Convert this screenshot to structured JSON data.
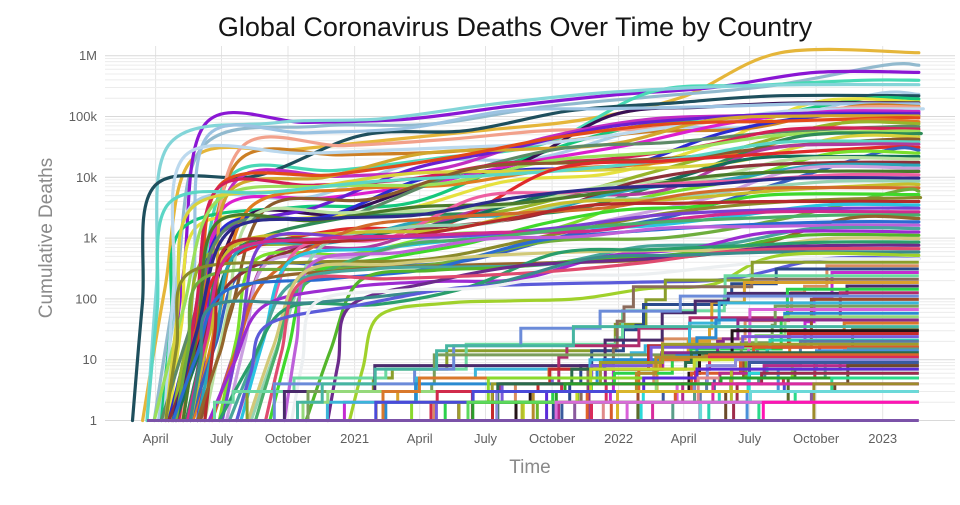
{
  "chart_data": {
    "type": "line",
    "title": "Global Coronavirus Deaths Over Time by Country",
    "xlabel": "Time",
    "ylabel": "Cumulative Deaths",
    "legend": "none",
    "grid": "on",
    "y_scale": "log",
    "y_ticks": [
      "1",
      "10",
      "100",
      "1k",
      "10k",
      "100k",
      "1M"
    ],
    "y_tick_values": [
      1,
      10,
      100,
      1000,
      10000,
      100000,
      1000000
    ],
    "y_range": [
      1,
      1000000
    ],
    "x_ticks": [
      "April",
      "July",
      "October",
      "2021",
      "April",
      "July",
      "October",
      "2022",
      "April",
      "July",
      "October",
      "2023"
    ],
    "x_tick_days": [
      70,
      161,
      253,
      345,
      435,
      526,
      618,
      710,
      800,
      891,
      983,
      1075
    ],
    "x_range_days": [
      0,
      1175
    ],
    "x_data_end_day": 1125,
    "series_note": "One unlabeled line per country; cumulative COVID-19 deaths. Each entry: [color, onset_day, final_cumulative_deaths, kind s=smooth-curve t=step-curve]",
    "series": [
      [
        "#e5b63a",
        52,
        1120000,
        "s"
      ],
      [
        "#92bace",
        68,
        699000,
        "s"
      ],
      [
        "#8a16d4",
        84,
        531000,
        "s"
      ],
      [
        "#49d9b5",
        92,
        394000,
        "s"
      ],
      [
        "#83d5d8",
        58,
        334000,
        "s"
      ],
      [
        "#a9cde6",
        74,
        231000,
        "s"
      ],
      [
        "#1e4f5d",
        38,
        219000,
        "s"
      ],
      [
        "#15c87c",
        78,
        194000,
        "s"
      ],
      [
        "#e6e13e",
        88,
        174000,
        "s"
      ],
      [
        "#381055",
        98,
        167000,
        "s"
      ],
      [
        "#9cc3e2",
        108,
        161000,
        "s"
      ],
      [
        "#cc7f24",
        94,
        146000,
        "s"
      ],
      [
        "#f2a18b",
        104,
        142000,
        "s"
      ],
      [
        "#bcd9ee",
        82,
        133000,
        "s"
      ],
      [
        "#dc1ecf",
        118,
        121000,
        "s"
      ],
      [
        "#c22dc2",
        98,
        118000,
        "s"
      ],
      [
        "#6a1fd2",
        128,
        112000,
        "s"
      ],
      [
        "#2b2bd0",
        88,
        104000,
        "s"
      ],
      [
        "#d2a72c",
        138,
        102000,
        "s"
      ],
      [
        "#e34b19",
        108,
        95000,
        "s"
      ],
      [
        "#e07d1f",
        122,
        82000,
        "s"
      ],
      [
        "#97b52b",
        92,
        76000,
        "s"
      ],
      [
        "#5d8a66",
        78,
        68000,
        "s"
      ],
      [
        "#d22057",
        102,
        62000,
        "s"
      ],
      [
        "#9ae05b",
        68,
        57000,
        "s"
      ],
      [
        "#2e8b57",
        112,
        52000,
        "s"
      ],
      [
        "#d9d23c",
        84,
        46000,
        "s"
      ],
      [
        "#8a5a2c",
        132,
        42000,
        "s"
      ],
      [
        "#5bd6c5",
        58,
        38000,
        "s"
      ],
      [
        "#b03b9e",
        148,
        35000,
        "s"
      ],
      [
        "#e02a2a",
        94,
        31000,
        "s"
      ],
      [
        "#3660c0",
        118,
        28000,
        "s"
      ],
      [
        "#7ae02b",
        158,
        25000,
        "s"
      ],
      [
        "#15705a",
        98,
        22000,
        "s"
      ],
      [
        "#b8e0a0",
        138,
        20000,
        "s"
      ],
      [
        "#8c2f3a",
        88,
        17500,
        "s"
      ],
      [
        "#2ba5b8",
        128,
        15800,
        "s"
      ],
      [
        "#caa0e0",
        168,
        14000,
        "s"
      ],
      [
        "#4a7a2b",
        108,
        12500,
        "s"
      ],
      [
        "#ee5fa1",
        182,
        11000,
        "s"
      ],
      [
        "#2c2c8b",
        94,
        9700,
        "s"
      ],
      [
        "#97d3b2",
        202,
        8600,
        "s"
      ],
      [
        "#c7bd2b",
        118,
        7600,
        "s"
      ],
      [
        "#d26b2b",
        148,
        6700,
        "s"
      ],
      [
        "#6fae3d",
        98,
        5900,
        "s"
      ],
      [
        "#3fd92b",
        228,
        5200,
        "s"
      ],
      [
        "#8a8a2b",
        84,
        4600,
        "s"
      ],
      [
        "#b52b2b",
        138,
        4000,
        "s"
      ],
      [
        "#2ac4e0",
        188,
        3500,
        "s"
      ],
      [
        "#7a40d1",
        162,
        3100,
        "s"
      ],
      [
        "#d12b8d",
        114,
        2700,
        "s"
      ],
      [
        "#4ab06b",
        208,
        2400,
        "s"
      ],
      [
        "#94652b",
        128,
        2100,
        "s"
      ],
      [
        "#2a6bd1",
        94,
        1850,
        "s"
      ],
      [
        "#bd60d9",
        248,
        1630,
        "s"
      ],
      [
        "#49a69b",
        172,
        1440,
        "s"
      ],
      [
        "#9c2bd1",
        144,
        1260,
        "s"
      ],
      [
        "#53b52b",
        278,
        1110,
        "s"
      ],
      [
        "#d1c979",
        198,
        980,
        "s"
      ],
      [
        "#2a9e6b",
        158,
        860,
        "s"
      ],
      [
        "#6b2a8b",
        308,
        760,
        "s"
      ],
      [
        "#df4b6f",
        222,
        670,
        "s"
      ],
      [
        "#3a8b8b",
        118,
        590,
        "s"
      ],
      [
        "#a0d12b",
        338,
        520,
        "s"
      ],
      [
        "#5b5bd9",
        182,
        455,
        "s"
      ],
      [
        "#eceff1",
        258,
        450,
        "s"
      ],
      [
        "#8a9e2b",
        148,
        400,
        "t"
      ],
      [
        "#d98d60",
        378,
        350,
        "t"
      ],
      [
        "#2a4a8b",
        202,
        310,
        "t"
      ],
      [
        "#c42bd1",
        288,
        272,
        "t"
      ],
      [
        "#6bd9a1",
        132,
        240,
        "t"
      ],
      [
        "#8b6b5b",
        418,
        211,
        "t"
      ],
      [
        "#d9a12b",
        232,
        186,
        "t"
      ],
      [
        "#4a2a6b",
        162,
        163,
        "t"
      ],
      [
        "#2bd14b",
        458,
        144,
        "t"
      ],
      [
        "#b02b6b",
        298,
        126,
        "t"
      ],
      [
        "#6b8bd9",
        192,
        111,
        "t"
      ],
      [
        "#9e4b2b",
        508,
        98,
        "t"
      ],
      [
        "#3bb5d9",
        242,
        86,
        "t"
      ],
      [
        "#7a9e5b",
        152,
        76,
        "t"
      ],
      [
        "#d960d9",
        558,
        67,
        "t"
      ],
      [
        "#2a8bd1",
        318,
        58,
        "t"
      ],
      [
        "#95d97b",
        212,
        51,
        "t"
      ],
      [
        "#8b2a8b",
        608,
        45,
        "t"
      ],
      [
        "#d9782b",
        262,
        40,
        "t"
      ],
      [
        "#46b5a1",
        172,
        35,
        "t"
      ],
      [
        "#5b6b2b",
        658,
        31,
        "t"
      ],
      [
        "#241419",
        488,
        30,
        "t"
      ],
      [
        "#c42b2b",
        352,
        27,
        "t"
      ],
      [
        "#7a5bd9",
        232,
        24,
        "t"
      ],
      [
        "#2bd1b1",
        708,
        21,
        "t"
      ],
      [
        "#5a7aa6",
        798,
        20,
        "t"
      ],
      [
        "#9e9e2b",
        292,
        18,
        "t"
      ],
      [
        "#d12b4b",
        402,
        16,
        "t"
      ],
      [
        "#d95b2b",
        228,
        16,
        "t"
      ],
      [
        "#5a9e8b",
        348,
        15,
        "t"
      ],
      [
        "#4a90d9",
        758,
        14,
        "t"
      ],
      [
        "#2a6b4b",
        438,
        13,
        "t"
      ],
      [
        "#6bb52b",
        252,
        12,
        "t"
      ],
      [
        "#e0612b",
        558,
        12,
        "t"
      ],
      [
        "#b58b2b",
        452,
        11,
        "t"
      ],
      [
        "#d92b5b",
        408,
        11,
        "t"
      ],
      [
        "#c4d92b",
        298,
        10,
        "t"
      ],
      [
        "#8b8bd9",
        328,
        10,
        "t"
      ],
      [
        "#8ad92b",
        358,
        9,
        "t"
      ],
      [
        "#3a5a9e",
        618,
        9,
        "t"
      ],
      [
        "#b52b8b",
        368,
        8,
        "t"
      ],
      [
        "#6b4a2b",
        518,
        8,
        "t"
      ],
      [
        "#b5bd2b",
        388,
        7,
        "t"
      ],
      [
        "#5b2bd9",
        478,
        7,
        "t"
      ],
      [
        "#2ad9d9",
        428,
        6,
        "t"
      ],
      [
        "#9e2b4b",
        798,
        6,
        "t"
      ],
      [
        "#e08b8b",
        638,
        5,
        "t"
      ],
      [
        "#2a9e2b",
        328,
        5,
        "t"
      ],
      [
        "#2bd98b",
        878,
        5,
        "t"
      ],
      [
        "#4a4ad9",
        248,
        4,
        "t"
      ],
      [
        "#d92b9e",
        478,
        4,
        "t"
      ],
      [
        "#9e8b2b",
        938,
        4,
        "t"
      ],
      [
        "#8b5a9e",
        538,
        3,
        "t"
      ],
      [
        "#d9b52b",
        698,
        3,
        "t"
      ],
      [
        "#6bd9d9",
        758,
        3,
        "t"
      ],
      [
        "#5bd95b",
        298,
        2,
        "t"
      ],
      [
        "#d96bd9",
        548,
        2,
        "t"
      ],
      [
        "#ff14b4",
        858,
        2,
        "t"
      ],
      [
        "#7b52a8",
        58,
        1,
        "t"
      ]
    ],
    "colors": {
      "background": "#ffffff",
      "grid_major": "#d9d9d9",
      "grid_minor": "#ececec",
      "title_text": "#151515",
      "axis_title_text": "#8a8a8a",
      "tick_text": "#5f5f5f"
    }
  }
}
